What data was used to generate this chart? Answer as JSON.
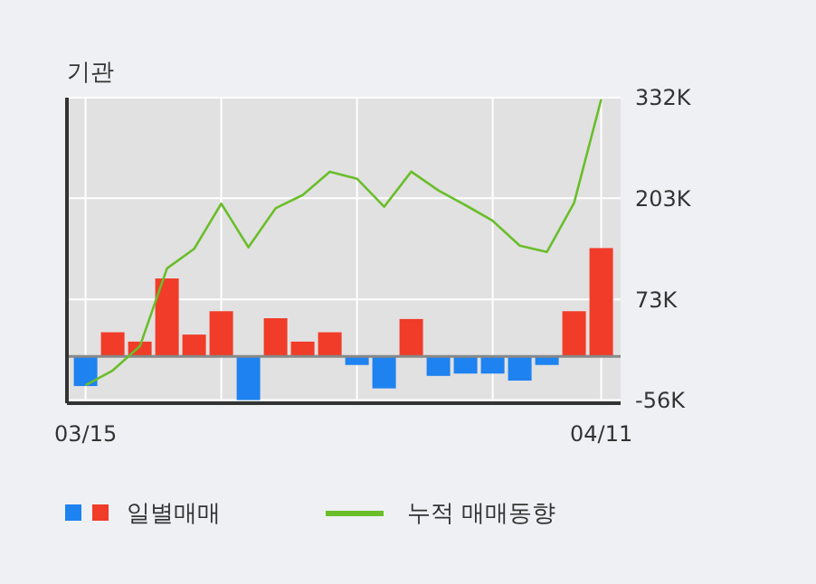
{
  "chart_data": {
    "type": "bar",
    "title": "기관",
    "categories": [
      "03/15",
      null,
      null,
      null,
      null,
      null,
      null,
      null,
      null,
      null,
      null,
      null,
      null,
      null,
      null,
      null,
      null,
      null,
      null,
      "04/11"
    ],
    "series": [
      {
        "name": "일별매매",
        "colors": [
          "#1e82f0",
          "#f03c28",
          "#f03c28",
          "#f03c28",
          "#f03c28",
          "#f03c28",
          "#1e82f0",
          "#f03c28",
          "#f03c28",
          "#f03c28",
          "#1e82f0",
          "#1e82f0",
          "#f03c28",
          "#1e82f0",
          "#1e82f0",
          "#1e82f0",
          "#1e82f0",
          "#1e82f0",
          "#f03c28",
          "#f03c28"
        ],
        "values": [
          -38000,
          31000,
          19000,
          100000,
          28000,
          58000,
          -56000,
          49000,
          19000,
          31000,
          -11000,
          -41000,
          48000,
          -25000,
          -22000,
          -22000,
          -31000,
          -11000,
          58000,
          139000
        ]
      },
      {
        "name": "누적 매매동향",
        "type": "line",
        "color": "#6abe2a",
        "values": [
          -37000,
          -18000,
          13000,
          113000,
          138000,
          196000,
          140000,
          190000,
          207000,
          237000,
          228000,
          192000,
          237000,
          213000,
          194000,
          174000,
          142000,
          134000,
          197000,
          330000
        ]
      }
    ],
    "ylim": [
      -60000,
      332000
    ],
    "yticks": [
      {
        "value": -56000,
        "label": "-56K"
      },
      {
        "value": 73000,
        "label": "73K"
      },
      {
        "value": 203000,
        "label": "203K"
      },
      {
        "value": 332000,
        "label": "332K"
      }
    ],
    "grid": true,
    "legend": "bottom"
  }
}
